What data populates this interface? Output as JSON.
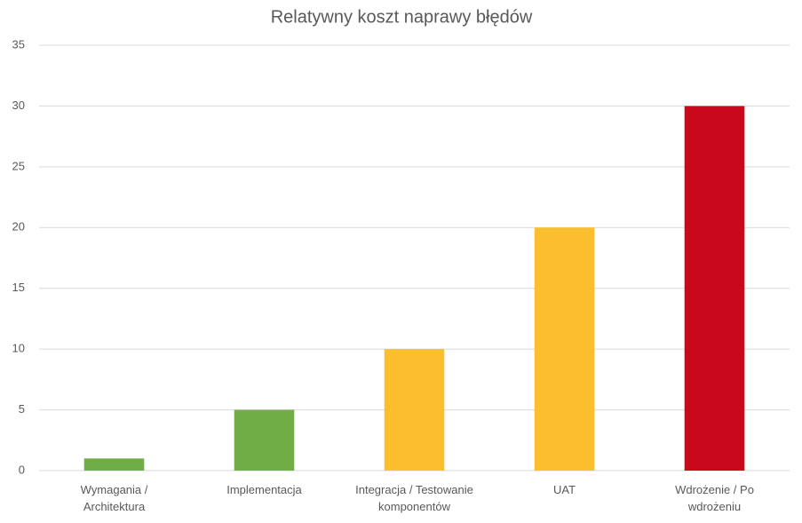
{
  "chart_data": {
    "type": "bar",
    "title": "Relatywny koszt naprawy błędów",
    "categories": [
      "Wymagania /\nArchitektura",
      "Implementacja",
      "Integracja / Testowanie\nkomponentów",
      "UAT",
      "Wdrożenie / Po\nwdrożeniu"
    ],
    "values": [
      1,
      5,
      10,
      20,
      30
    ],
    "colors": [
      "#70ad47",
      "#70ad47",
      "#fbbf2d",
      "#fbbf2d",
      "#c9091b"
    ],
    "ylim": [
      0,
      35
    ],
    "yticks": [
      0,
      5,
      10,
      15,
      20,
      25,
      30,
      35
    ],
    "grid": true
  }
}
